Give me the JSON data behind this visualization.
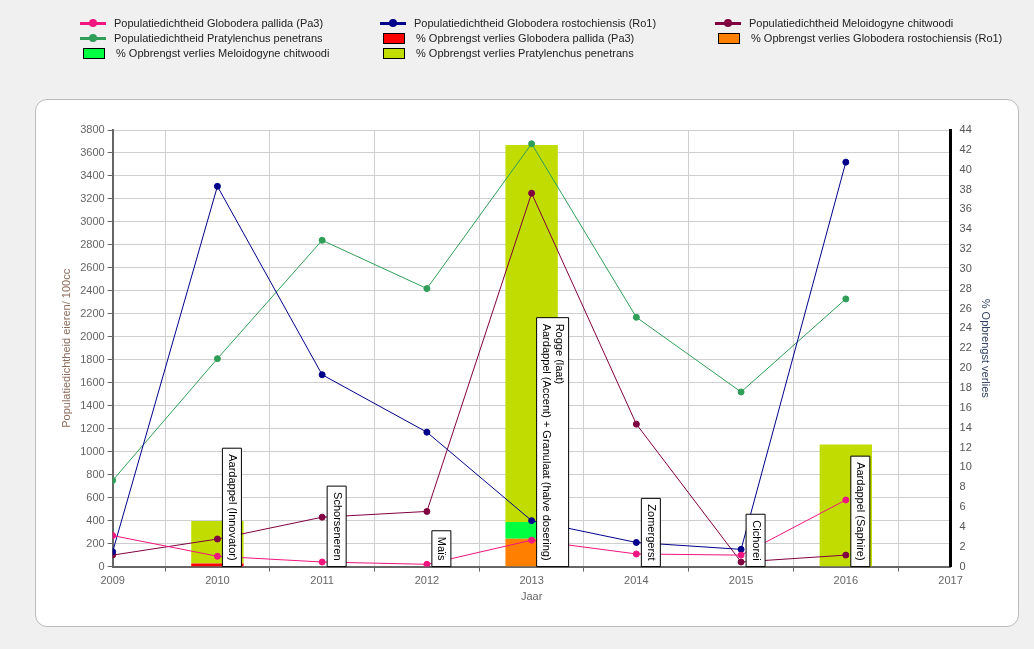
{
  "chart_data": {
    "type": "line",
    "xlabel": "Jaar",
    "ylabel": "Populatiedichtheid eieren/ 100cc",
    "y2label": "% Opbrengst verlies",
    "x": [
      2009,
      2010,
      2011,
      2012,
      2013,
      2014,
      2015,
      2016
    ],
    "xlim": [
      2009,
      2017
    ],
    "xticks": [
      2009,
      2010,
      2011,
      2012,
      2013,
      2014,
      2015,
      2016,
      2017
    ],
    "ylim": [
      0,
      3800
    ],
    "yticks": [
      0,
      200,
      400,
      600,
      800,
      1000,
      1200,
      1400,
      1600,
      1800,
      2000,
      2200,
      2400,
      2600,
      2800,
      3000,
      3200,
      3400,
      3600,
      3800
    ],
    "y2lim": [
      0,
      44
    ],
    "y2ticks": [
      0,
      2,
      4,
      6,
      8,
      10,
      12,
      14,
      16,
      18,
      20,
      22,
      24,
      26,
      28,
      30,
      32,
      34,
      36,
      38,
      40,
      42,
      44
    ],
    "grid": true,
    "legend": "top",
    "marker": "circle",
    "stacked": true,
    "series": [
      {
        "name": "Populatiedichtheid Globodera pallida (Pa3)",
        "color": "#f0157f",
        "values": [
          270,
          90,
          40,
          20,
          230,
          110,
          100,
          580
        ]
      },
      {
        "name": "Populatiedichtheid Globodera rostochiensis (Ro1)",
        "color": "#00008b",
        "values": [
          130,
          3310,
          1670,
          1170,
          400,
          210,
          150,
          3520
        ]
      },
      {
        "name": "Populatiedichtheid Meloidogyne chitwoodi",
        "color": "#800040",
        "values": [
          100,
          240,
          430,
          480,
          3250,
          1240,
          40,
          100
        ]
      },
      {
        "name": "Populatiedichtheid Pratylenchus penetrans",
        "color": "#2e9e58",
        "values": [
          750,
          1810,
          2840,
          2420,
          3680,
          2170,
          1520,
          2330
        ]
      },
      {
        "name": "% Opbrengst verlies Globodera pallida (Pa3)",
        "type": "bar",
        "axis": "y2",
        "color": "#ff0000",
        "values": [
          null,
          0.3,
          null,
          null,
          null,
          null,
          null,
          null
        ]
      },
      {
        "name": "% Opbrengst verlies Globodera rostochiensis (Ro1)",
        "type": "bar",
        "axis": "y2",
        "color": "#ff8000",
        "values": [
          null,
          null,
          null,
          null,
          2.8,
          null,
          null,
          null
        ]
      },
      {
        "name": "% Opbrengst verlies Meloidogyne chitwoodi",
        "type": "bar",
        "axis": "y2",
        "color": "#00ff40",
        "values": [
          null,
          null,
          null,
          null,
          1.7,
          null,
          null,
          null
        ]
      },
      {
        "name": "% Opbrengst verlies Pratylenchus penetrans",
        "type": "bar",
        "axis": "y2",
        "color": "#c0dc00",
        "values": [
          null,
          4.3,
          null,
          null,
          38.0,
          null,
          null,
          12.3
        ]
      }
    ],
    "annotations": [
      "Aardappel (Innovator)",
      "Schorseneren",
      "Maïs",
      "Rogge (laat)\nAardappel (Accent) + Granulaat (halve dosering)",
      "Zomergerst",
      "Cichorei",
      "Aardappel (Saphire)"
    ]
  }
}
